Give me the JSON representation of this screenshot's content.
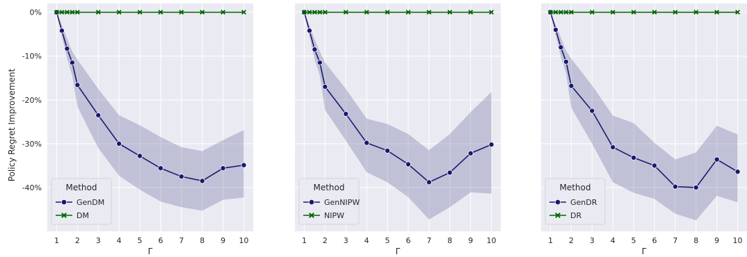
{
  "chart_data": [
    {
      "type": "line",
      "ylabel": "Policy Regret Improvement",
      "xlabel": "Γ",
      "x": [
        1,
        1.25,
        1.5,
        1.75,
        2,
        3,
        4,
        5,
        6,
        7,
        8,
        9,
        10
      ],
      "xticks": [
        1,
        2,
        3,
        4,
        5,
        6,
        7,
        8,
        9,
        10
      ],
      "yticks": [
        0,
        -10,
        -20,
        -30,
        -40
      ],
      "ytick_labels": [
        "0%",
        "-10%",
        "-20%",
        "-30%",
        "-40%"
      ],
      "ylim": [
        -50,
        2
      ],
      "xlim": [
        0.55,
        10.45
      ],
      "grid": true,
      "legend": {
        "title": "Method",
        "placement": "lower-left"
      },
      "series": [
        {
          "name": "GenDM",
          "color": "#191970",
          "marker": "circle",
          "values": [
            0,
            -4.2,
            -8.3,
            -11.5,
            -16.6,
            -23.5,
            -30.0,
            -32.8,
            -35.6,
            -37.5,
            -38.5,
            -35.6,
            -34.9
          ],
          "band_upper": [
            0,
            -3.0,
            -6.0,
            -9.0,
            -10.8,
            -17.5,
            -23.5,
            -25.8,
            -28.5,
            -30.8,
            -31.7,
            -29.2,
            -26.9
          ],
          "band_lower": [
            0,
            -5.5,
            -10.5,
            -14.5,
            -21.5,
            -31.0,
            -37.3,
            -40.5,
            -43.2,
            -44.5,
            -45.3,
            -42.8,
            -42.3
          ]
        },
        {
          "name": "DM",
          "color": "#006400",
          "marker": "x",
          "values": [
            0,
            0,
            0,
            0,
            0,
            0,
            0,
            0,
            0,
            0,
            0,
            0,
            0
          ]
        }
      ]
    },
    {
      "type": "line",
      "xlabel": "Γ",
      "x": [
        1,
        1.25,
        1.5,
        1.75,
        2,
        3,
        4,
        5,
        6,
        7,
        8,
        9,
        10
      ],
      "xticks": [
        1,
        2,
        3,
        4,
        5,
        6,
        7,
        8,
        9,
        10
      ],
      "yticks": [
        0,
        -10,
        -20,
        -30,
        -40
      ],
      "ylim": [
        -50,
        2
      ],
      "xlim": [
        0.55,
        10.45
      ],
      "grid": true,
      "legend": {
        "title": "Method",
        "placement": "lower-left"
      },
      "series": [
        {
          "name": "GenNIPW",
          "color": "#191970",
          "marker": "circle",
          "values": [
            0,
            -4.2,
            -8.5,
            -11.5,
            -17.0,
            -23.2,
            -29.8,
            -31.6,
            -34.7,
            -38.8,
            -36.6,
            -32.2,
            -30.2
          ],
          "band_upper": [
            0,
            -3.0,
            -6.2,
            -9.0,
            -11.5,
            -17.5,
            -24.3,
            -25.5,
            -27.8,
            -31.5,
            -27.8,
            -22.8,
            -18.2
          ],
          "band_lower": [
            0,
            -5.5,
            -10.8,
            -14.5,
            -22.3,
            -29.3,
            -36.5,
            -38.8,
            -42.2,
            -47.3,
            -44.5,
            -41.1,
            -41.4
          ]
        },
        {
          "name": "NIPW",
          "color": "#006400",
          "marker": "x",
          "values": [
            0,
            0,
            0,
            0,
            0,
            0,
            0,
            0,
            0,
            0,
            0,
            0,
            0
          ]
        }
      ]
    },
    {
      "type": "line",
      "xlabel": "Γ",
      "x": [
        1,
        1.25,
        1.5,
        1.75,
        2,
        3,
        4,
        5,
        6,
        7,
        8,
        9,
        10
      ],
      "xticks": [
        1,
        2,
        3,
        4,
        5,
        6,
        7,
        8,
        9,
        10
      ],
      "yticks": [
        0,
        -10,
        -20,
        -30,
        -40
      ],
      "ylim": [
        -50,
        2
      ],
      "xlim": [
        0.55,
        10.45
      ],
      "grid": true,
      "legend": {
        "title": "Method",
        "placement": "lower-left"
      },
      "series": [
        {
          "name": "GenDR",
          "color": "#191970",
          "marker": "circle",
          "values": [
            0,
            -4.0,
            -8.0,
            -11.3,
            -16.8,
            -22.5,
            -30.8,
            -33.2,
            -35.0,
            -39.8,
            -40.0,
            -33.6,
            -36.4
          ],
          "band_upper": [
            0,
            -2.8,
            -5.8,
            -8.8,
            -10.6,
            -16.7,
            -23.6,
            -25.3,
            -29.8,
            -33.6,
            -32.0,
            -25.9,
            -27.9
          ],
          "band_lower": [
            0,
            -5.2,
            -10.2,
            -14.0,
            -21.8,
            -30.0,
            -38.8,
            -41.2,
            -42.6,
            -46.0,
            -47.5,
            -41.9,
            -43.4
          ]
        },
        {
          "name": "DR",
          "color": "#006400",
          "marker": "x",
          "values": [
            0,
            0,
            0,
            0,
            0,
            0,
            0,
            0,
            0,
            0,
            0,
            0,
            0
          ]
        }
      ]
    }
  ]
}
